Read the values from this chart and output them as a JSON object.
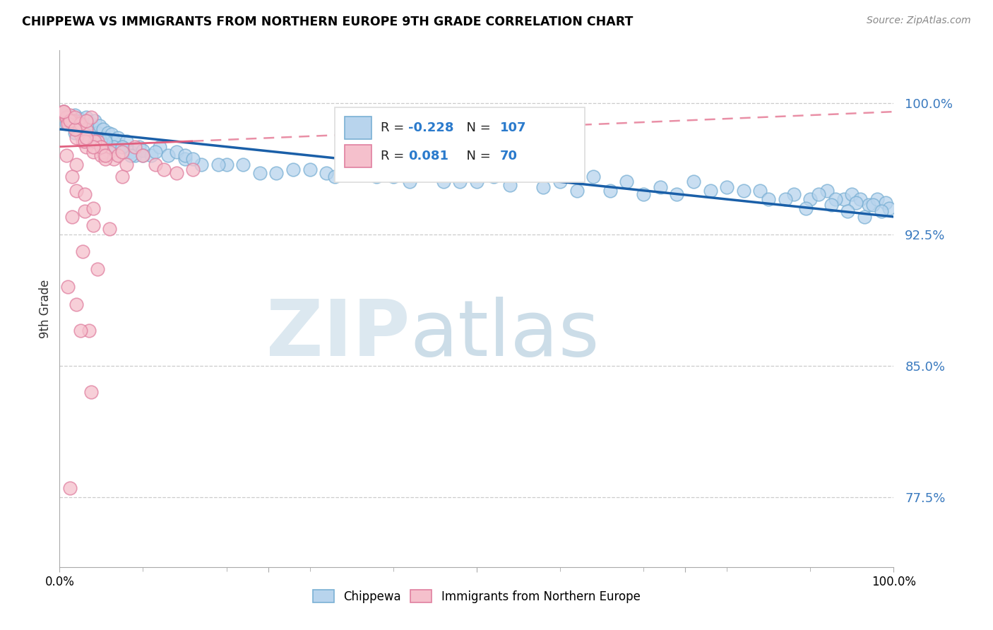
{
  "title": "CHIPPEWA VS IMMIGRANTS FROM NORTHERN EUROPE 9TH GRADE CORRELATION CHART",
  "source": "Source: ZipAtlas.com",
  "ylabel": "9th Grade",
  "y_tick_labels": [
    "77.5%",
    "85.0%",
    "92.5%",
    "100.0%"
  ],
  "y_tick_values": [
    77.5,
    85.0,
    92.5,
    100.0
  ],
  "xlim": [
    0.0,
    100.0
  ],
  "ylim": [
    73.5,
    103.0
  ],
  "chippewa_color_face": "#b8d4ed",
  "chippewa_color_edge": "#7ab0d4",
  "immigrants_color_face": "#f5c0cc",
  "immigrants_color_edge": "#e080a0",
  "trend_blue_color": "#1a5fa8",
  "trend_pink_color": "#e06080",
  "r_blue": "-0.228",
  "n_blue": "107",
  "r_pink": "0.081",
  "n_pink": "70",
  "blue_trend_start_y": 98.5,
  "blue_trend_end_y": 93.5,
  "pink_trend_start_y": 97.5,
  "pink_trend_end_y": 99.5,
  "pink_solid_end_x": 16.0,
  "chippewa_x": [
    0.5,
    1.0,
    1.2,
    1.5,
    1.8,
    2.0,
    2.3,
    2.5,
    2.8,
    3.0,
    3.2,
    3.5,
    3.8,
    4.0,
    4.2,
    4.5,
    4.8,
    5.0,
    5.2,
    5.5,
    5.8,
    6.0,
    6.2,
    6.5,
    7.0,
    7.5,
    8.0,
    8.5,
    9.0,
    9.5,
    10.0,
    11.0,
    12.0,
    13.0,
    14.0,
    15.0,
    17.0,
    20.0,
    24.0,
    28.0,
    32.0,
    36.0,
    40.0,
    44.0,
    48.0,
    52.0,
    56.0,
    60.0,
    64.0,
    68.0,
    72.0,
    76.0,
    80.0,
    84.0,
    88.0,
    90.0,
    92.0,
    94.0,
    95.0,
    96.0,
    97.0,
    98.0,
    99.0,
    99.5,
    1.5,
    2.2,
    3.0,
    4.5,
    6.5,
    8.5,
    11.5,
    15.0,
    19.0,
    26.0,
    33.0,
    42.0,
    50.0,
    58.0,
    66.0,
    74.0,
    82.0,
    87.0,
    91.0,
    93.0,
    95.5,
    97.5,
    0.8,
    1.8,
    3.5,
    5.5,
    7.5,
    10.0,
    16.0,
    22.0,
    30.0,
    38.0,
    46.0,
    54.0,
    62.0,
    70.0,
    78.0,
    85.0,
    89.5,
    92.5,
    94.5,
    96.5,
    98.5
  ],
  "chippewa_y": [
    99.5,
    99.2,
    99.0,
    98.8,
    99.3,
    98.5,
    99.1,
    99.0,
    98.3,
    98.7,
    99.2,
    98.5,
    98.8,
    98.0,
    99.0,
    98.3,
    98.7,
    97.8,
    98.5,
    98.0,
    98.3,
    97.5,
    98.2,
    97.8,
    98.0,
    97.5,
    97.8,
    97.2,
    97.0,
    97.5,
    97.3,
    97.0,
    97.5,
    97.0,
    97.2,
    96.8,
    96.5,
    96.5,
    96.0,
    96.2,
    96.0,
    96.2,
    95.8,
    96.0,
    95.5,
    95.8,
    96.0,
    95.5,
    95.8,
    95.5,
    95.2,
    95.5,
    95.2,
    95.0,
    94.8,
    94.5,
    95.0,
    94.5,
    94.8,
    94.5,
    94.2,
    94.5,
    94.3,
    94.0,
    99.0,
    98.5,
    98.0,
    97.8,
    97.5,
    97.0,
    97.2,
    97.0,
    96.5,
    96.0,
    95.8,
    95.5,
    95.5,
    95.2,
    95.0,
    94.8,
    95.0,
    94.5,
    94.8,
    94.5,
    94.3,
    94.2,
    98.8,
    98.3,
    98.0,
    97.8,
    97.5,
    97.0,
    96.8,
    96.5,
    96.2,
    95.8,
    95.5,
    95.3,
    95.0,
    94.8,
    95.0,
    94.5,
    94.0,
    94.2,
    93.8,
    93.5,
    93.8
  ],
  "immigrants_x": [
    0.5,
    0.8,
    1.0,
    1.2,
    1.5,
    1.8,
    2.0,
    2.3,
    2.5,
    2.8,
    3.0,
    3.2,
    3.5,
    4.0,
    4.5,
    5.0,
    5.5,
    6.0,
    6.5,
    7.0,
    7.5,
    8.0,
    9.0,
    10.0,
    11.5,
    12.5,
    14.0,
    16.0,
    0.8,
    1.5,
    2.2,
    3.2,
    4.2,
    5.2,
    0.5,
    1.0,
    2.0,
    3.0,
    4.0,
    5.0,
    1.2,
    2.5,
    3.8,
    5.5,
    7.5,
    1.5,
    2.8,
    4.5,
    1.0,
    2.0,
    3.5,
    5.0,
    2.0,
    3.0,
    4.0,
    1.8,
    3.2,
    0.8,
    2.0,
    4.0,
    6.0,
    1.5,
    3.0,
    5.5,
    1.2,
    3.8,
    0.5,
    1.8,
    3.2,
    2.5
  ],
  "immigrants_y": [
    99.5,
    99.2,
    99.0,
    99.3,
    98.8,
    99.0,
    98.5,
    98.8,
    98.2,
    97.8,
    98.2,
    97.5,
    97.8,
    97.2,
    97.8,
    97.5,
    97.0,
    97.2,
    96.8,
    97.0,
    97.2,
    96.5,
    97.5,
    97.0,
    96.5,
    96.2,
    96.0,
    96.2,
    99.2,
    99.0,
    98.8,
    98.5,
    97.8,
    97.2,
    99.5,
    98.8,
    95.0,
    93.8,
    93.0,
    97.0,
    99.0,
    98.8,
    99.2,
    96.8,
    95.8,
    93.5,
    91.5,
    90.5,
    89.5,
    88.5,
    87.0,
    97.5,
    98.0,
    97.8,
    97.5,
    98.5,
    98.0,
    97.0,
    96.5,
    94.0,
    92.8,
    95.8,
    94.8,
    97.0,
    78.0,
    83.5,
    99.5,
    99.2,
    99.0,
    87.0
  ]
}
